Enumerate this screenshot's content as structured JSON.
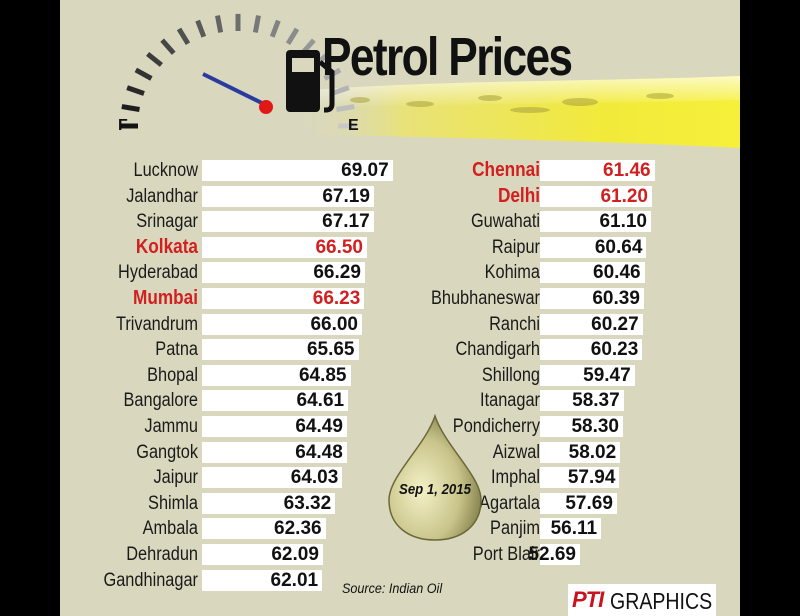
{
  "chart_data": {
    "type": "bar",
    "title": "Petrol Prices",
    "date_label": "Sep 1, 2015",
    "source": "Source: Indian Oil",
    "credit": {
      "pti": "PTI",
      "graphics": "GRAPHICS"
    },
    "xlim": [
      50,
      70
    ],
    "highlight_color": "#d21f1f",
    "series_left": [
      {
        "city": "Lucknow",
        "value": 69.07,
        "label": "69.07"
      },
      {
        "city": "Jalandhar",
        "value": 67.19,
        "label": "67.19"
      },
      {
        "city": "Srinagar",
        "value": 67.17,
        "label": "67.17"
      },
      {
        "city": "Kolkata",
        "value": 66.5,
        "label": "66.50",
        "highlight": true
      },
      {
        "city": "Hyderabad",
        "value": 66.29,
        "label": "66.29"
      },
      {
        "city": "Mumbai",
        "value": 66.23,
        "label": "66.23",
        "highlight": true
      },
      {
        "city": "Trivandrum",
        "value": 66.0,
        "label": "66.00"
      },
      {
        "city": "Patna",
        "value": 65.65,
        "label": "65.65"
      },
      {
        "city": "Bhopal",
        "value": 64.85,
        "label": "64.85"
      },
      {
        "city": "Bangalore",
        "value": 64.61,
        "label": "64.61"
      },
      {
        "city": "Jammu",
        "value": 64.49,
        "label": "64.49"
      },
      {
        "city": "Gangtok",
        "value": 64.48,
        "label": "64.48"
      },
      {
        "city": "Jaipur",
        "value": 64.03,
        "label": "64.03"
      },
      {
        "city": "Shimla",
        "value": 63.32,
        "label": "63.32"
      },
      {
        "city": "Ambala",
        "value": 62.36,
        "label": "62.36"
      },
      {
        "city": "Dehradun",
        "value": 62.09,
        "label": "62.09"
      },
      {
        "city": "Gandhinagar",
        "value": 62.01,
        "label": "62.01"
      }
    ],
    "series_right": [
      {
        "city": "Chennai",
        "value": 61.46,
        "label": "61.46",
        "highlight": true
      },
      {
        "city": "Delhi",
        "value": 61.2,
        "label": "61.20",
        "highlight": true
      },
      {
        "city": "Guwahati",
        "value": 61.1,
        "label": "61.10"
      },
      {
        "city": "Raipur",
        "value": 60.64,
        "label": "60.64"
      },
      {
        "city": "Kohima",
        "value": 60.46,
        "label": "60.46"
      },
      {
        "city": "Bhubhaneswar",
        "value": 60.39,
        "label": "60.39"
      },
      {
        "city": "Ranchi",
        "value": 60.27,
        "label": "60.27"
      },
      {
        "city": "Chandigarh",
        "value": 60.23,
        "label": "60.23"
      },
      {
        "city": "Shillong",
        "value": 59.47,
        "label": "59.47"
      },
      {
        "city": "Itanagar",
        "value": 58.37,
        "label": "58.37"
      },
      {
        "city": "Pondicherry",
        "value": 58.3,
        "label": "58.30"
      },
      {
        "city": "Aizwal",
        "value": 58.02,
        "label": "58.02"
      },
      {
        "city": "Imphal",
        "value": 57.94,
        "label": "57.94"
      },
      {
        "city": "Agartala",
        "value": 57.69,
        "label": "57.69"
      },
      {
        "city": "Panjim",
        "value": 56.11,
        "label": "56.11"
      },
      {
        "city": "Port Blair",
        "value": 52.69,
        "label": "52.69"
      }
    ]
  }
}
